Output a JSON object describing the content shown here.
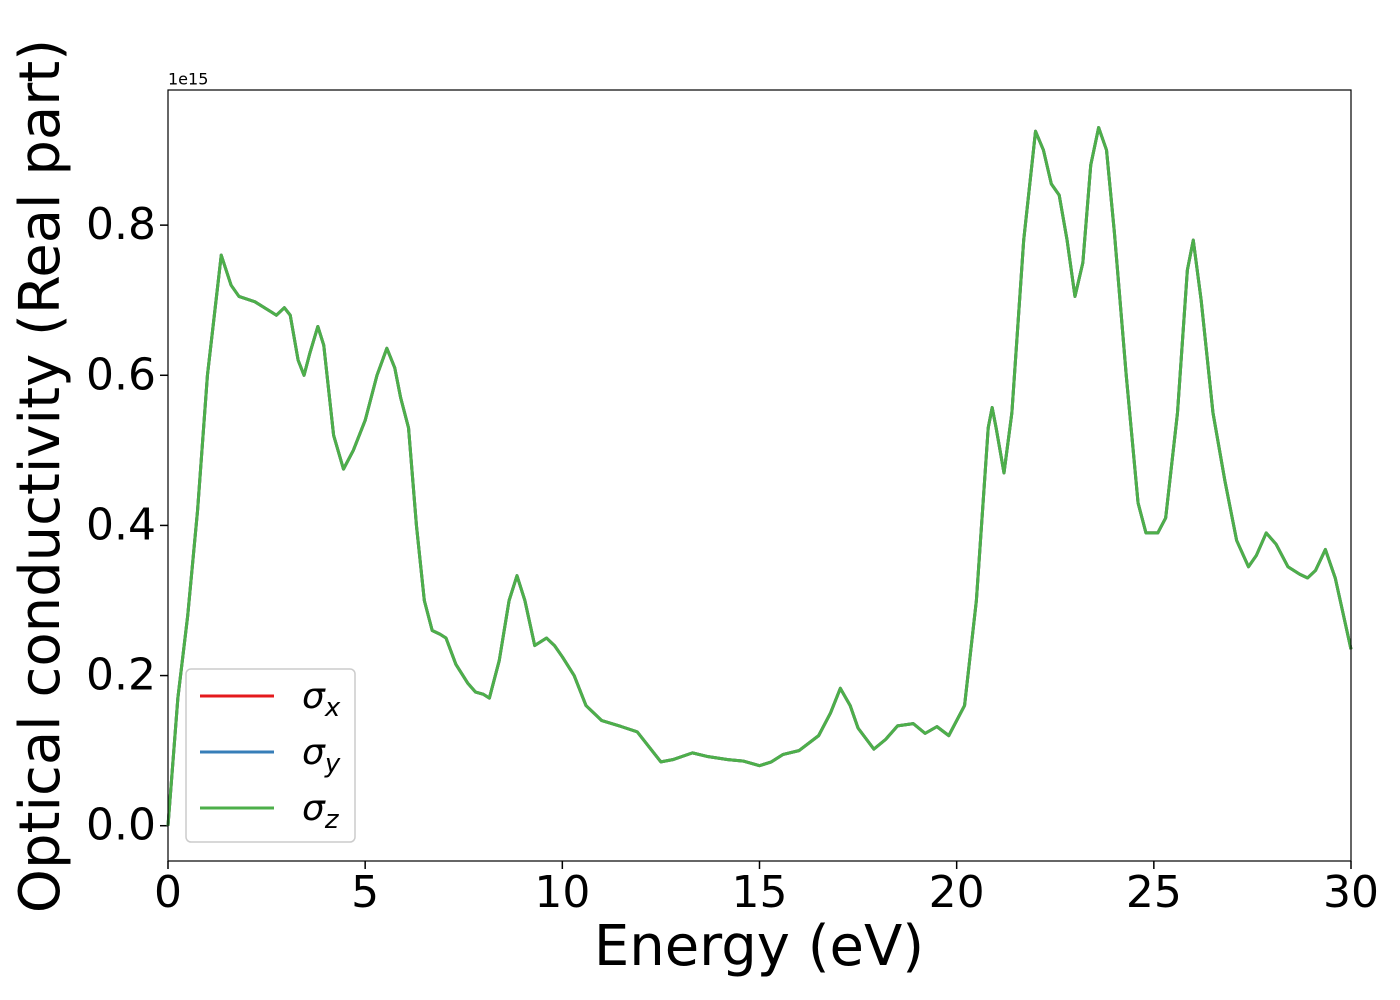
{
  "chart_data": {
    "type": "line",
    "xlabel": "Energy (eV)",
    "ylabel": "Optical conductivity (Real part)",
    "y_offset_label": "1e15",
    "xlim": [
      0,
      30
    ],
    "xticks": [
      0,
      5,
      10,
      15,
      20,
      25,
      30
    ],
    "ylim": [
      -0.047,
      0.98
    ],
    "yticks": [
      {
        "value": 0,
        "label": "0.0"
      },
      0.2,
      0.4,
      0.6,
      0.8
    ],
    "legend": "lower left",
    "x": [
      0,
      0.25,
      0.5,
      0.75,
      1.0,
      1.35,
      1.6,
      1.8,
      2.2,
      2.6,
      2.75,
      2.95,
      3.1,
      3.3,
      3.45,
      3.6,
      3.8,
      3.95,
      4.2,
      4.45,
      4.7,
      5.0,
      5.3,
      5.55,
      5.75,
      5.9,
      6.1,
      6.3,
      6.5,
      6.7,
      6.9,
      7.05,
      7.3,
      7.6,
      7.8,
      8.0,
      8.15,
      8.4,
      8.65,
      8.85,
      9.05,
      9.3,
      9.6,
      9.8,
      10.0,
      10.3,
      10.6,
      11.0,
      11.5,
      11.9,
      12.2,
      12.5,
      12.8,
      13.3,
      13.7,
      14.2,
      14.6,
      15.0,
      15.3,
      15.6,
      16.0,
      16.5,
      16.8,
      17.05,
      17.3,
      17.5,
      17.9,
      18.2,
      18.5,
      18.9,
      19.2,
      19.5,
      19.8,
      20.2,
      20.5,
      20.8,
      20.9,
      21.0,
      21.2,
      21.4,
      21.7,
      22.0,
      22.2,
      22.4,
      22.6,
      22.8,
      23.0,
      23.2,
      23.4,
      23.6,
      23.8,
      24.0,
      24.3,
      24.6,
      24.8,
      25.1,
      25.3,
      25.6,
      25.85,
      26.0,
      26.2,
      26.5,
      26.8,
      27.1,
      27.4,
      27.6,
      27.85,
      28.1,
      28.4,
      28.7,
      28.9,
      29.1,
      29.35,
      29.6,
      30.0
    ],
    "series": [
      {
        "name": "σx",
        "color": "#e41a1c",
        "values": [
          0,
          0.17,
          0.28,
          0.42,
          0.6,
          0.76,
          0.72,
          0.705,
          0.698,
          0.685,
          0.68,
          0.69,
          0.68,
          0.62,
          0.6,
          0.63,
          0.665,
          0.64,
          0.52,
          0.475,
          0.5,
          0.54,
          0.6,
          0.636,
          0.61,
          0.57,
          0.53,
          0.4,
          0.3,
          0.26,
          0.255,
          0.25,
          0.215,
          0.19,
          0.178,
          0.175,
          0.17,
          0.22,
          0.3,
          0.333,
          0.3,
          0.24,
          0.25,
          0.24,
          0.225,
          0.2,
          0.16,
          0.14,
          0.132,
          0.125,
          0.105,
          0.085,
          0.088,
          0.097,
          0.092,
          0.088,
          0.086,
          0.08,
          0.085,
          0.095,
          0.1,
          0.12,
          0.15,
          0.183,
          0.16,
          0.13,
          0.102,
          0.115,
          0.133,
          0.136,
          0.123,
          0.132,
          0.12,
          0.16,
          0.3,
          0.53,
          0.557,
          0.53,
          0.47,
          0.55,
          0.78,
          0.925,
          0.9,
          0.855,
          0.84,
          0.78,
          0.705,
          0.75,
          0.88,
          0.93,
          0.9,
          0.79,
          0.6,
          0.43,
          0.39,
          0.39,
          0.41,
          0.55,
          0.74,
          0.78,
          0.7,
          0.55,
          0.46,
          0.38,
          0.345,
          0.36,
          0.39,
          0.375,
          0.345,
          0.335,
          0.33,
          0.34,
          0.368,
          0.33,
          0.235
        ]
      },
      {
        "name": "σy",
        "color": "#377eb8",
        "values": [
          0,
          0.17,
          0.28,
          0.42,
          0.6,
          0.76,
          0.72,
          0.705,
          0.698,
          0.685,
          0.68,
          0.69,
          0.68,
          0.62,
          0.6,
          0.63,
          0.665,
          0.64,
          0.52,
          0.475,
          0.5,
          0.54,
          0.6,
          0.636,
          0.61,
          0.57,
          0.53,
          0.4,
          0.3,
          0.26,
          0.255,
          0.25,
          0.215,
          0.19,
          0.178,
          0.175,
          0.17,
          0.22,
          0.3,
          0.333,
          0.3,
          0.24,
          0.25,
          0.24,
          0.225,
          0.2,
          0.16,
          0.14,
          0.132,
          0.125,
          0.105,
          0.085,
          0.088,
          0.097,
          0.092,
          0.088,
          0.086,
          0.08,
          0.085,
          0.095,
          0.1,
          0.12,
          0.15,
          0.183,
          0.16,
          0.13,
          0.102,
          0.115,
          0.133,
          0.136,
          0.123,
          0.132,
          0.12,
          0.16,
          0.3,
          0.53,
          0.557,
          0.53,
          0.47,
          0.55,
          0.78,
          0.925,
          0.9,
          0.855,
          0.84,
          0.78,
          0.705,
          0.75,
          0.88,
          0.93,
          0.9,
          0.79,
          0.6,
          0.43,
          0.39,
          0.39,
          0.41,
          0.55,
          0.74,
          0.78,
          0.7,
          0.55,
          0.46,
          0.38,
          0.345,
          0.36,
          0.39,
          0.375,
          0.345,
          0.335,
          0.33,
          0.34,
          0.368,
          0.33,
          0.235
        ]
      },
      {
        "name": "σz",
        "color": "#4daf4a",
        "values": [
          0,
          0.17,
          0.28,
          0.42,
          0.6,
          0.76,
          0.72,
          0.705,
          0.698,
          0.685,
          0.68,
          0.69,
          0.68,
          0.62,
          0.6,
          0.63,
          0.665,
          0.64,
          0.52,
          0.475,
          0.5,
          0.54,
          0.6,
          0.636,
          0.61,
          0.57,
          0.53,
          0.4,
          0.3,
          0.26,
          0.255,
          0.25,
          0.215,
          0.19,
          0.178,
          0.175,
          0.17,
          0.22,
          0.3,
          0.333,
          0.3,
          0.24,
          0.25,
          0.24,
          0.225,
          0.2,
          0.16,
          0.14,
          0.132,
          0.125,
          0.105,
          0.085,
          0.088,
          0.097,
          0.092,
          0.088,
          0.086,
          0.08,
          0.085,
          0.095,
          0.1,
          0.12,
          0.15,
          0.183,
          0.16,
          0.13,
          0.102,
          0.115,
          0.133,
          0.136,
          0.123,
          0.132,
          0.12,
          0.16,
          0.3,
          0.53,
          0.557,
          0.53,
          0.47,
          0.55,
          0.78,
          0.925,
          0.9,
          0.855,
          0.84,
          0.78,
          0.705,
          0.75,
          0.88,
          0.93,
          0.9,
          0.79,
          0.6,
          0.43,
          0.39,
          0.39,
          0.41,
          0.55,
          0.74,
          0.78,
          0.7,
          0.55,
          0.46,
          0.38,
          0.345,
          0.36,
          0.39,
          0.375,
          0.345,
          0.335,
          0.33,
          0.34,
          0.368,
          0.33,
          0.235
        ]
      }
    ]
  }
}
